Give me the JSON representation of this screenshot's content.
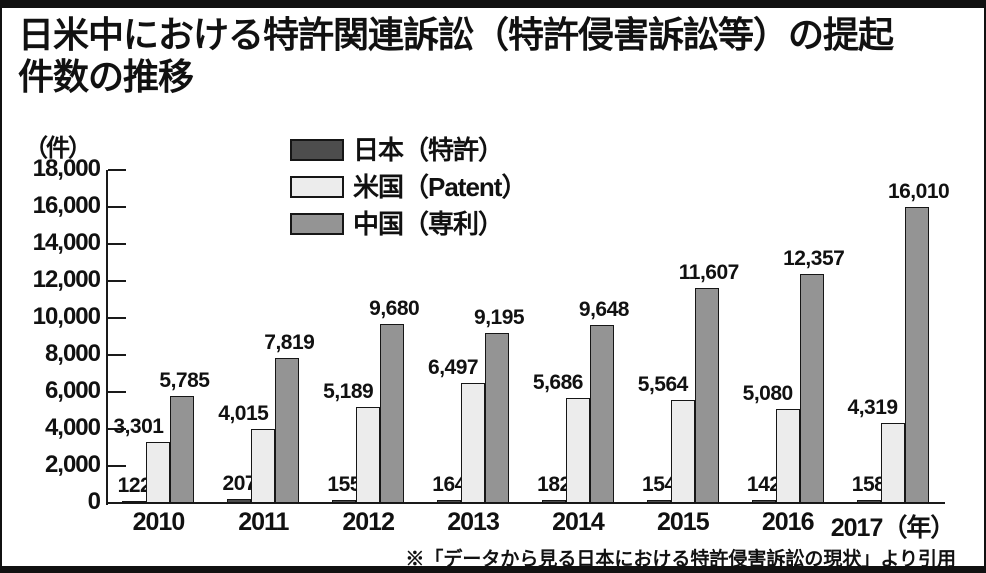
{
  "panel": {
    "title_lines": [
      "日米中における特許関連訴訟（特許侵害訴訟等）の提起",
      "件数の推移"
    ]
  },
  "footer": "※「データから見る日本における特許侵害訴訟の現状」より引用",
  "chart_data": {
    "type": "bar",
    "title": "日米中における特許関連訴訟（特許侵害訴訟等）の提起件数の推移",
    "unit_label": "（件）",
    "x_suffix": "（年）",
    "categories": [
      "2010",
      "2011",
      "2012",
      "2013",
      "2014",
      "2015",
      "2016",
      "2017"
    ],
    "series": [
      {
        "key": "japan",
        "name": "日本（特許）",
        "color": "#4d4d4d",
        "values": [
          122,
          207,
          155,
          164,
          182,
          154,
          142,
          158
        ]
      },
      {
        "key": "us",
        "name": "米国（Patent）",
        "color": "#ececec",
        "values": [
          3301,
          4015,
          5189,
          6497,
          5686,
          5564,
          5080,
          4319
        ]
      },
      {
        "key": "china",
        "name": "中国（専利）",
        "color": "#949494",
        "values": [
          5785,
          7819,
          9680,
          9195,
          9648,
          11607,
          12357,
          16010
        ]
      }
    ],
    "ylim": [
      0,
      18000
    ],
    "ytick_step": 2000,
    "grid": false,
    "legend_position": "top-center",
    "value_labels": true,
    "axis_color": "#1a1a1a"
  }
}
